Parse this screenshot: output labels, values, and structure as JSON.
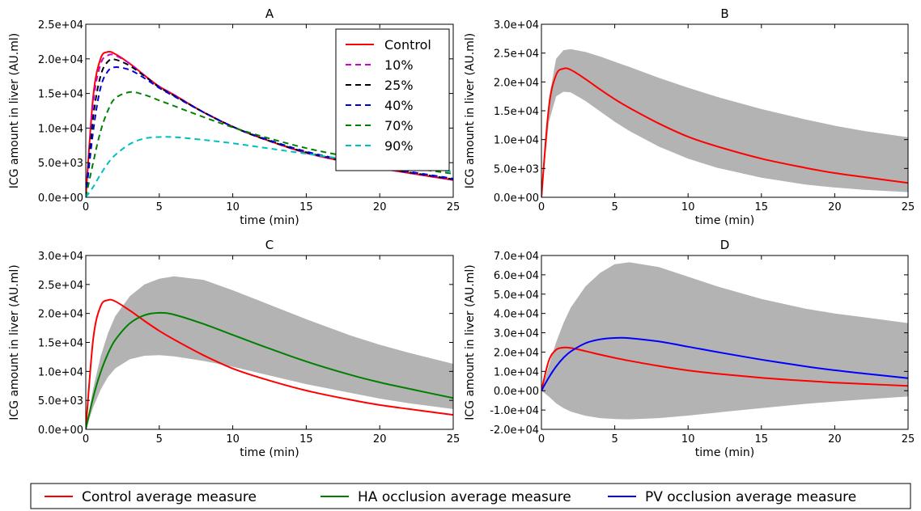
{
  "chart_data": [
    {
      "panel": "A",
      "type": "line",
      "title": "A",
      "xlabel": "time (min)",
      "ylabel": "ICG amount in liver (AU.ml)",
      "xlim": [
        0,
        25
      ],
      "ylim": [
        0,
        25000
      ],
      "xticks": [
        "0",
        "5",
        "10",
        "15",
        "20",
        "25"
      ],
      "yticks": [
        "0.0e+00",
        "5.0e+03",
        "1.0e+04",
        "1.5e+04",
        "2.0e+04",
        "2.5e+04"
      ],
      "grid": false,
      "legend_position": "top-right",
      "x": [
        0,
        0.5,
        1,
        1.5,
        2,
        3,
        4,
        5,
        6,
        8,
        10,
        12,
        15,
        18,
        20,
        22,
        25
      ],
      "series": [
        {
          "name": "Control",
          "color": "#ff0000",
          "dash": "solid",
          "values": [
            0,
            14500,
            20000,
            21000,
            20700,
            19300,
            17600,
            16000,
            14800,
            12300,
            10200,
            8500,
            6400,
            5000,
            4200,
            3500,
            2500
          ]
        },
        {
          "name": "10%",
          "color": "#cc00cc",
          "dash": "dashed",
          "values": [
            0,
            13500,
            19200,
            20500,
            20500,
            19300,
            17600,
            16000,
            14800,
            12300,
            10200,
            8500,
            6400,
            5000,
            4200,
            3500,
            2500
          ]
        },
        {
          "name": "25%",
          "color": "#000000",
          "dash": "dashed",
          "values": [
            0,
            11500,
            17500,
            19600,
            19900,
            19000,
            17500,
            15900,
            14700,
            12300,
            10200,
            8500,
            6500,
            5100,
            4300,
            3600,
            2600
          ]
        },
        {
          "name": "40%",
          "color": "#0000dd",
          "dash": "dashed",
          "values": [
            0,
            9500,
            15800,
            18200,
            18800,
            18400,
            17200,
            15800,
            14600,
            12300,
            10200,
            8600,
            6600,
            5200,
            4400,
            3700,
            2700
          ]
        },
        {
          "name": "70%",
          "color": "#008000",
          "dash": "dashed",
          "values": [
            0,
            5000,
            9500,
            12500,
            14300,
            15200,
            14800,
            14000,
            13200,
            11600,
            10100,
            8800,
            7100,
            5800,
            5000,
            4300,
            3400
          ]
        },
        {
          "name": "90%",
          "color": "#00bfbf",
          "dash": "dashed",
          "values": [
            0,
            1500,
            3300,
            4900,
            6100,
            7700,
            8500,
            8700,
            8700,
            8300,
            7800,
            7200,
            6300,
            5400,
            4900,
            4400,
            3700
          ]
        }
      ]
    },
    {
      "panel": "B",
      "type": "line",
      "title": "B",
      "xlabel": "time (min)",
      "ylabel": "ICG amount in liver (AU.ml)",
      "xlim": [
        0,
        25
      ],
      "ylim": [
        0,
        30000
      ],
      "xticks": [
        "0",
        "5",
        "10",
        "15",
        "20",
        "25"
      ],
      "yticks": [
        "0.0e+00",
        "5.0e+03",
        "1.0e+04",
        "1.5e+04",
        "2.0e+04",
        "2.5e+04",
        "3.0e+04"
      ],
      "grid": false,
      "x": [
        0,
        0.5,
        1,
        1.5,
        2,
        3,
        4,
        5,
        6,
        8,
        10,
        12,
        15,
        18,
        20,
        22,
        25
      ],
      "band": {
        "upper": [
          0,
          17000,
          24000,
          25500,
          25700,
          25200,
          24400,
          23500,
          22600,
          20700,
          19000,
          17400,
          15300,
          13500,
          12400,
          11500,
          10400
        ],
        "lower": [
          0,
          13000,
          17500,
          18300,
          18200,
          16700,
          14900,
          13100,
          11500,
          8800,
          6700,
          5100,
          3400,
          2200,
          1700,
          1300,
          900
        ]
      },
      "series": [
        {
          "name": "",
          "color": "#ff0000",
          "values": [
            0,
            15500,
            21200,
            22300,
            22100,
            20500,
            18700,
            17000,
            15500,
            12800,
            10500,
            8800,
            6700,
            5100,
            4200,
            3500,
            2500
          ]
        }
      ]
    },
    {
      "panel": "C",
      "type": "line",
      "title": "C",
      "xlabel": "time (min)",
      "ylabel": "ICG amount in liver (AU.ml)",
      "xlim": [
        0,
        25
      ],
      "ylim": [
        0,
        30000
      ],
      "xticks": [
        "0",
        "5",
        "10",
        "15",
        "20",
        "25"
      ],
      "yticks": [
        "0.0e+00",
        "5.0e+03",
        "1.0e+04",
        "1.5e+04",
        "2.0e+04",
        "2.5e+04",
        "3.0e+04"
      ],
      "grid": false,
      "x": [
        0,
        0.5,
        1,
        1.5,
        2,
        3,
        4,
        5,
        6,
        8,
        10,
        12,
        15,
        18,
        20,
        22,
        25
      ],
      "band": {
        "upper": [
          0,
          7000,
          12500,
          16500,
          19500,
          23000,
          25000,
          26000,
          26400,
          25800,
          24000,
          22000,
          19000,
          16200,
          14600,
          13200,
          11300
        ],
        "lower": [
          0,
          3800,
          6800,
          9000,
          10500,
          12100,
          12700,
          12800,
          12600,
          11800,
          10800,
          9600,
          7800,
          6300,
          5300,
          4500,
          3500
        ]
      },
      "series": [
        {
          "name": "",
          "color": "#ff0000",
          "values": [
            0,
            15500,
            21200,
            22300,
            22100,
            20500,
            18700,
            17000,
            15500,
            12800,
            10500,
            8800,
            6700,
            5100,
            4200,
            3500,
            2500
          ]
        },
        {
          "name": "",
          "color": "#008000",
          "values": [
            0,
            5500,
            9800,
            13000,
            15400,
            18300,
            19700,
            20100,
            19800,
            18200,
            16300,
            14400,
            11700,
            9400,
            8100,
            7000,
            5400
          ]
        }
      ]
    },
    {
      "panel": "D",
      "type": "line",
      "title": "D",
      "xlabel": "time (min)",
      "ylabel": "ICG amount in liver (AU.ml)",
      "xlim": [
        0,
        25
      ],
      "ylim": [
        -20000,
        70000
      ],
      "xticks": [
        "0",
        "5",
        "10",
        "15",
        "20",
        "25"
      ],
      "yticks": [
        "-2.0e+04",
        "-1.0e+04",
        "0.0e+00",
        "1.0e+04",
        "2.0e+04",
        "3.0e+04",
        "4.0e+04",
        "5.0e+04",
        "6.0e+04",
        "7.0e+04"
      ],
      "grid": false,
      "x": [
        0,
        0.5,
        1,
        1.5,
        2,
        3,
        4,
        5,
        6,
        8,
        10,
        12,
        15,
        18,
        20,
        22,
        25
      ],
      "band": {
        "upper": [
          0,
          13000,
          25000,
          35000,
          43000,
          54000,
          61000,
          65500,
          66500,
          64000,
          59000,
          54000,
          47500,
          42500,
          40000,
          38000,
          35000
        ],
        "lower": [
          0,
          -3000,
          -6500,
          -9000,
          -10800,
          -13000,
          -14200,
          -14700,
          -14800,
          -14200,
          -12900,
          -11300,
          -9000,
          -6800,
          -5600,
          -4500,
          -3000
        ]
      },
      "series": [
        {
          "name": "",
          "color": "#ff0000",
          "values": [
            0,
            15500,
            21200,
            22300,
            22100,
            20500,
            18700,
            17000,
            15500,
            12800,
            10500,
            8800,
            6700,
            5100,
            4200,
            3500,
            2500
          ]
        },
        {
          "name": "",
          "color": "#0000ff",
          "values": [
            0,
            6800,
            12500,
            17000,
            20300,
            24600,
            26600,
            27300,
            27200,
            25500,
            22800,
            20000,
            16100,
            12600,
            10600,
            8900,
            6500
          ]
        }
      ]
    }
  ],
  "bottom_legend": [
    {
      "label": "Control average measure",
      "color": "#ff0000"
    },
    {
      "label": "HA occlusion average measure",
      "color": "#008000"
    },
    {
      "label": "PV occlusion average measure",
      "color": "#0000ff"
    }
  ]
}
